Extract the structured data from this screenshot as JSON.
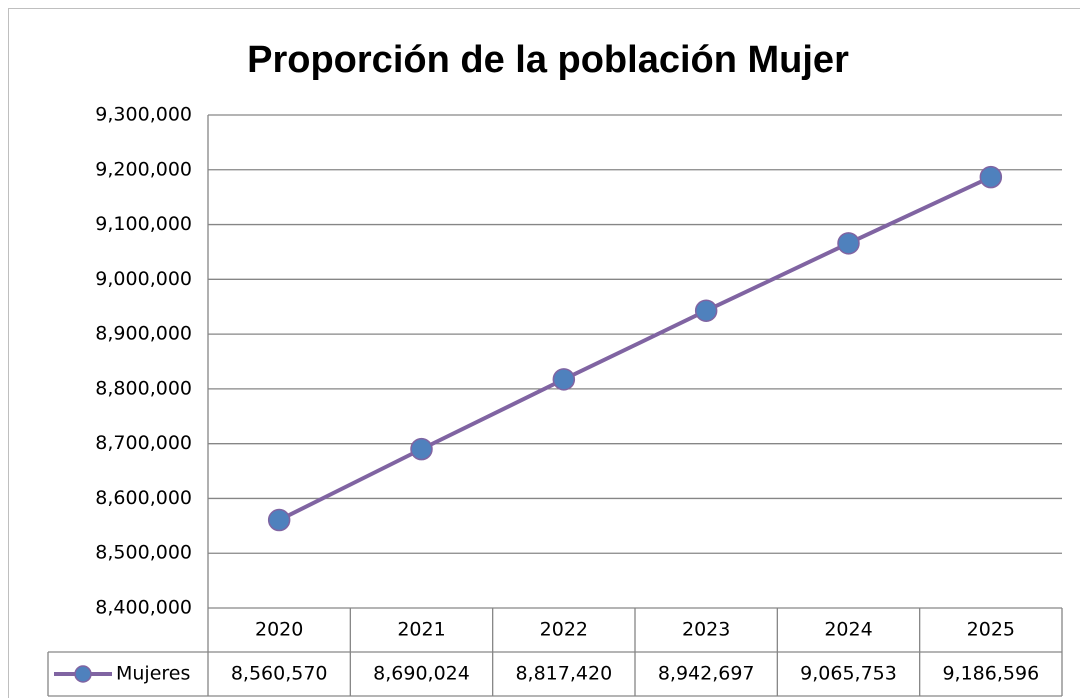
{
  "chart_data": {
    "type": "line",
    "title": "Proporción de la población Mujer",
    "categories": [
      "2020",
      "2021",
      "2022",
      "2023",
      "2024",
      "2025"
    ],
    "series": [
      {
        "name": "Mujeres",
        "color": "#8064a2",
        "marker_color": "#4f81bd",
        "values": [
          8560570,
          8690024,
          8817420,
          8942697,
          9065753,
          9186596
        ],
        "value_labels": [
          "8,560,570",
          "8,690,024",
          "8,817,420",
          "8,942,697",
          "9,065,753",
          "9,186,596"
        ]
      }
    ],
    "ylim": [
      8400000,
      9300000
    ],
    "yticks": [
      {
        "value": 8400000,
        "label": "8,400,000"
      },
      {
        "value": 8500000,
        "label": "8,500,000"
      },
      {
        "value": 8600000,
        "label": "8,600,000"
      },
      {
        "value": 8700000,
        "label": "8,700,000"
      },
      {
        "value": 8800000,
        "label": "8,800,000"
      },
      {
        "value": 8900000,
        "label": "8,900,000"
      },
      {
        "value": 9000000,
        "label": "9,000,000"
      },
      {
        "value": 9100000,
        "label": "9,100,000"
      },
      {
        "value": 9200000,
        "label": "9,200,000"
      },
      {
        "value": 9300000,
        "label": "9,300,000"
      }
    ],
    "grid": true,
    "data_table": true
  }
}
